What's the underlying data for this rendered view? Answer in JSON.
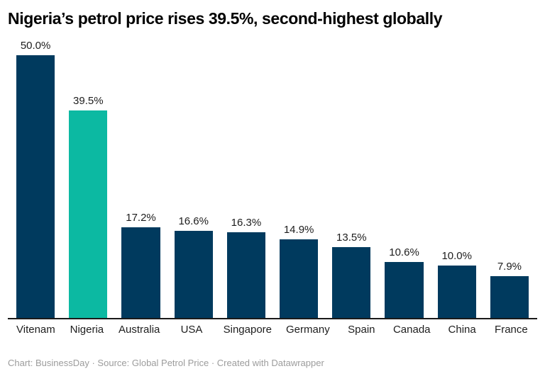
{
  "chart_data": {
    "type": "bar",
    "title": "Nigeria’s petrol price rises 39.5%, second-highest globally",
    "categories": [
      "Vitenam",
      "Nigeria",
      "Australia",
      "USA",
      "Singapore",
      "Germany",
      "Spain",
      "Canada",
      "China",
      "France"
    ],
    "values": [
      50.0,
      39.5,
      17.2,
      16.6,
      16.3,
      14.9,
      13.5,
      10.6,
      10.0,
      7.9
    ],
    "value_labels": [
      "50.0%",
      "39.5%",
      "17.2%",
      "16.6%",
      "16.3%",
      "14.9%",
      "13.5%",
      "10.6%",
      "10.0%",
      "7.9%"
    ],
    "highlight_index": 1,
    "xlabel": "",
    "ylabel": "",
    "ylim": [
      0,
      50
    ],
    "grid": false,
    "legend": "none",
    "bar_color": "#003a5e",
    "highlight_color": "#0cb9a2",
    "axis_color": "#1a1a1a",
    "value_label_color": "#1d1d1d"
  },
  "footer": {
    "text": "Chart: BusinessDay · Source: Global Petrol Price · Created with Datawrapper"
  }
}
